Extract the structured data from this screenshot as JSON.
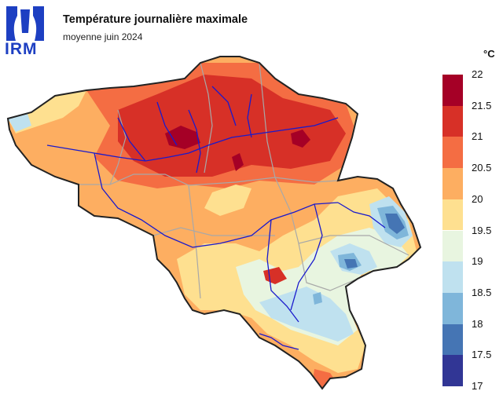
{
  "header": {
    "logo_text": "IRM",
    "title": "Température journalière maximale",
    "subtitle": "moyenne juin 2024"
  },
  "legend": {
    "unit": "°C",
    "ticks": [
      "22",
      "21.5",
      "21",
      "20.5",
      "20",
      "19.5",
      "19",
      "18.5",
      "18",
      "17.5",
      "17"
    ],
    "bins": [
      {
        "from": 21.5,
        "to": 22,
        "color": "#a50026"
      },
      {
        "from": 21,
        "to": 21.5,
        "color": "#d73027"
      },
      {
        "from": 20.5,
        "to": 21,
        "color": "#f46d43"
      },
      {
        "from": 20,
        "to": 20.5,
        "color": "#fdae61"
      },
      {
        "from": 19.5,
        "to": 20,
        "color": "#fee090"
      },
      {
        "from": 19,
        "to": 19.5,
        "color": "#e8f5e0"
      },
      {
        "from": 18.5,
        "to": 19,
        "color": "#bfe1ef"
      },
      {
        "from": 18,
        "to": 18.5,
        "color": "#7fb6da"
      },
      {
        "from": 17.5,
        "to": 18,
        "color": "#4575b4"
      },
      {
        "from": 17,
        "to": 17.5,
        "color": "#313695"
      }
    ]
  },
  "map": {
    "region": "Belgique",
    "border_color": "#222222",
    "river_color": "#1a1acc",
    "province_border_color": "#a8a8a8"
  }
}
